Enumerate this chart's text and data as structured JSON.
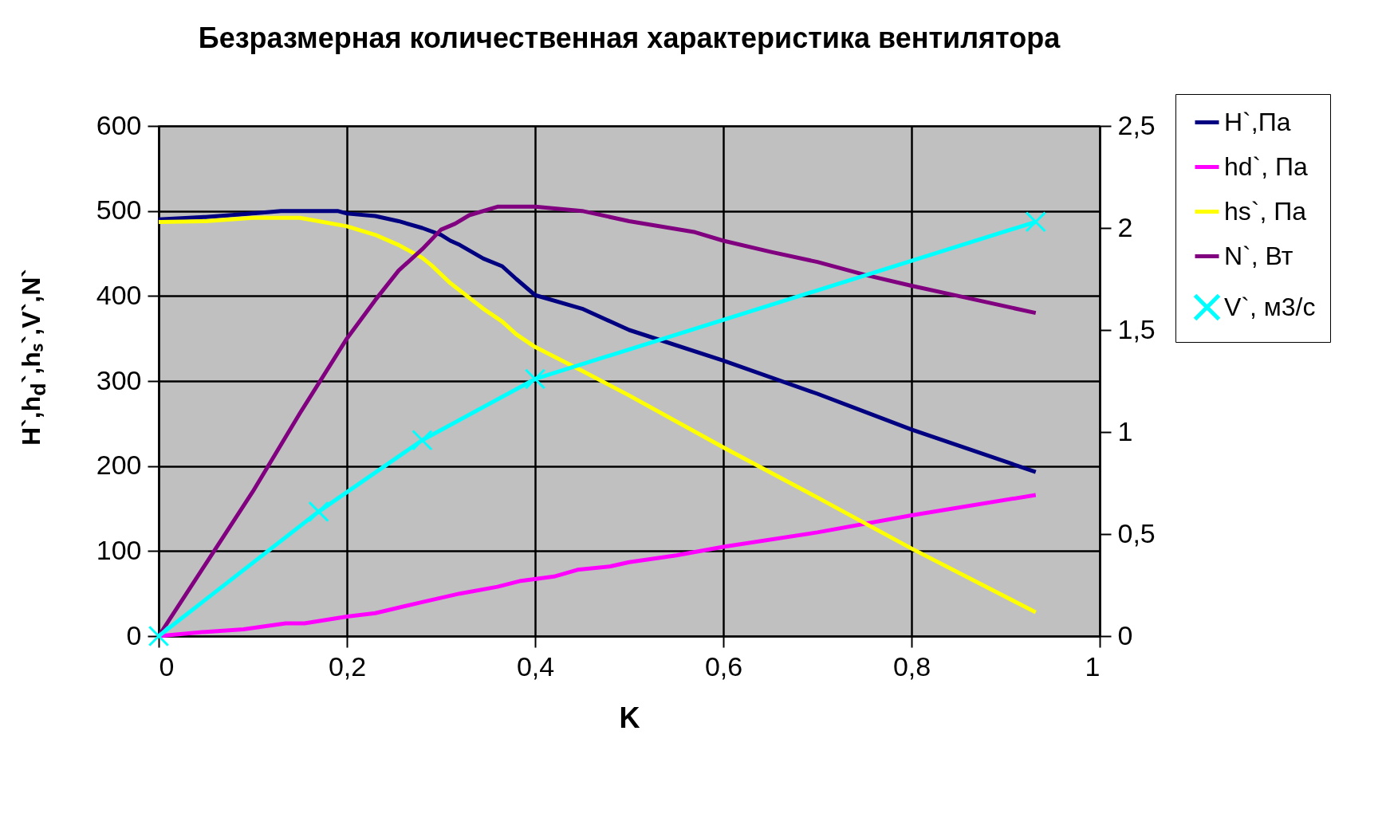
{
  "chart_data": {
    "type": "line",
    "title": "Безразмерная количественная характеристика вентилятора",
    "xlabel": "K",
    "ylabel": "H`,h$_{d}$`,hₛ`,V`,N`",
    "xlim": [
      0,
      1
    ],
    "xticks": [
      0,
      {
        "value": 0.2,
        "label": "0,2"
      },
      {
        "value": 0.4,
        "label": "0,4"
      },
      {
        "value": 0.6,
        "label": "0,6"
      },
      {
        "value": 0.8,
        "label": "0,8"
      },
      1
    ],
    "ylim": [
      0,
      600
    ],
    "yticks": [
      0,
      100,
      200,
      300,
      400,
      500,
      600
    ],
    "y2lim": [
      0,
      2.5
    ],
    "y2ticks": [
      0,
      {
        "value": 0.5,
        "label": "0,5"
      },
      1,
      {
        "value": 1.5,
        "label": "1,5"
      },
      2,
      {
        "value": 2.5,
        "label": "2,5"
      }
    ],
    "grid": true,
    "legend": "top right",
    "series": [
      {
        "name": "H`,Па",
        "color": "#000080",
        "x": [
          0,
          0.05,
          0.1,
          0.13,
          0.19,
          0.2,
          0.23,
          0.255,
          0.28,
          0.3,
          0.31,
          0.32,
          0.345,
          0.365,
          0.38,
          0.4,
          0.45,
          0.5,
          0.6,
          0.7,
          0.8,
          0.932
        ],
        "values": [
          490,
          493,
          497,
          500,
          500,
          497,
          494,
          488,
          480,
          472,
          465,
          460,
          444,
          435,
          420,
          401,
          385,
          360,
          324,
          285,
          243,
          193
        ]
      },
      {
        "name": "hd`, Па",
        "color": "#ff00ff",
        "x": [
          0,
          0.05,
          0.09,
          0.135,
          0.155,
          0.2,
          0.23,
          0.28,
          0.32,
          0.36,
          0.385,
          0.42,
          0.445,
          0.48,
          0.5,
          0.55,
          0.6,
          0.7,
          0.8,
          0.932
        ],
        "values": [
          0,
          5,
          8,
          15,
          15,
          23,
          27,
          40,
          50,
          58,
          65,
          70,
          78,
          82,
          87,
          95,
          105,
          122,
          142,
          166
        ]
      },
      {
        "name": "hs`, Па",
        "color": "#ffff00",
        "x": [
          0,
          0.05,
          0.1,
          0.15,
          0.2,
          0.23,
          0.255,
          0.28,
          0.29,
          0.31,
          0.345,
          0.365,
          0.38,
          0.4,
          0.45,
          0.5,
          0.6,
          0.7,
          0.75,
          0.8,
          0.932
        ],
        "values": [
          487,
          488,
          492,
          492,
          482,
          472,
          460,
          445,
          436,
          415,
          385,
          370,
          355,
          340,
          312,
          283,
          222,
          163,
          133,
          103,
          28
        ]
      },
      {
        "name": "N`, Вт",
        "color": "#800080",
        "x": [
          0,
          0.05,
          0.1,
          0.15,
          0.2,
          0.23,
          0.255,
          0.28,
          0.3,
          0.315,
          0.33,
          0.36,
          0.4,
          0.45,
          0.5,
          0.57,
          0.6,
          0.65,
          0.7,
          0.75,
          0.8,
          0.85,
          0.932
        ],
        "values": [
          0,
          85,
          170,
          262,
          350,
          395,
          430,
          455,
          478,
          485,
          495,
          505,
          505,
          500,
          488,
          475,
          465,
          452,
          440,
          425,
          412,
          400,
          380
        ]
      },
      {
        "name": "V`, м3/с",
        "color": "#00ffff",
        "axis": "y2",
        "marker": "cross",
        "x": [
          0,
          0.17,
          0.28,
          0.4,
          0.932
        ],
        "values": [
          0,
          0.61,
          0.96,
          1.26,
          2.03
        ]
      }
    ]
  }
}
